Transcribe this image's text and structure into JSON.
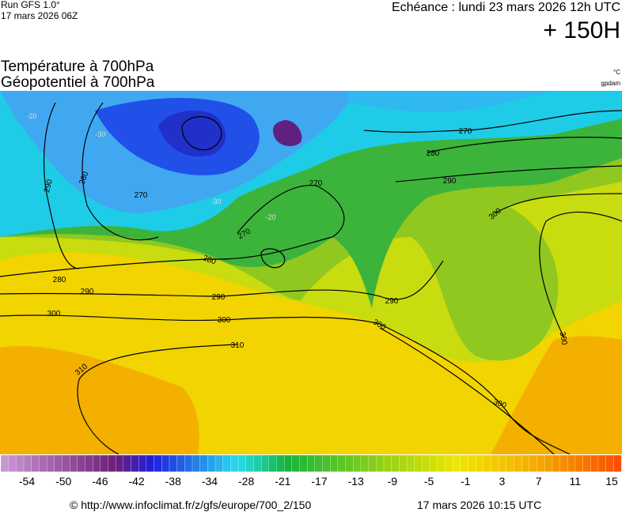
{
  "header": {
    "run": "Run GFS 1.0°",
    "date": "17 mars 2026 06Z",
    "echeance": "Echéance : lundi 23 mars 2026 12h UTC",
    "lead": "+ 150H"
  },
  "titles": {
    "line1": "Température à 700hPa",
    "line2": "Géopotentiel à 700hPa",
    "unit1": "°C",
    "unit2": "gpdam"
  },
  "map": {
    "geopotential_labels": [
      "290",
      "280",
      "280",
      "290",
      "300",
      "310",
      "310",
      "300",
      "290",
      "280",
      "270",
      "270",
      "280",
      "270",
      "290",
      "300",
      "290",
      "300",
      "300",
      "300",
      "270"
    ],
    "temperature_labels": [
      "-20",
      "-30",
      "-20",
      "-30"
    ]
  },
  "colorbar": {
    "ticks": [
      -54,
      -50,
      -46,
      -42,
      -38,
      -34,
      -28,
      -21,
      -17,
      -13,
      -9,
      -5,
      -1,
      3,
      7,
      11,
      15
    ]
  },
  "footer": {
    "source": "© http://www.infoclimat.fr/z/gfs/europe/700_2/150",
    "generated": "17 mars 2026 10:15 UTC"
  }
}
